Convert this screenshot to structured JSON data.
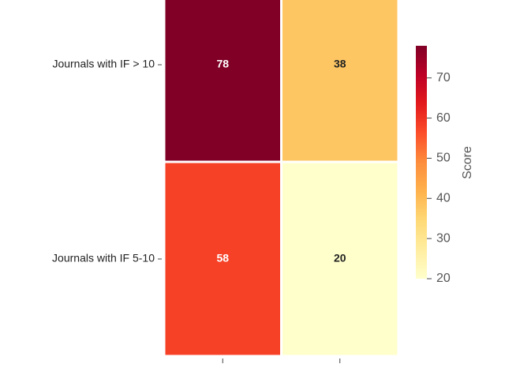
{
  "chart_data": {
    "type": "heatmap",
    "x": [
      null,
      null
    ],
    "y": [
      "Journals with IF > 10",
      "Journals with IF 5-10"
    ],
    "z": [
      [
        78,
        38
      ],
      [
        58,
        20
      ]
    ],
    "zlim": [
      20,
      78
    ],
    "colorbar_title": "Score",
    "colorbar_ticks": [
      20,
      30,
      40,
      50,
      60,
      70
    ],
    "colorscale": [
      "#ffffcc",
      "#ffeda0",
      "#fed976",
      "#feb24c",
      "#fd8d3c",
      "#fc4e2a",
      "#e31a1c",
      "#bd0026",
      "#800026"
    ]
  }
}
